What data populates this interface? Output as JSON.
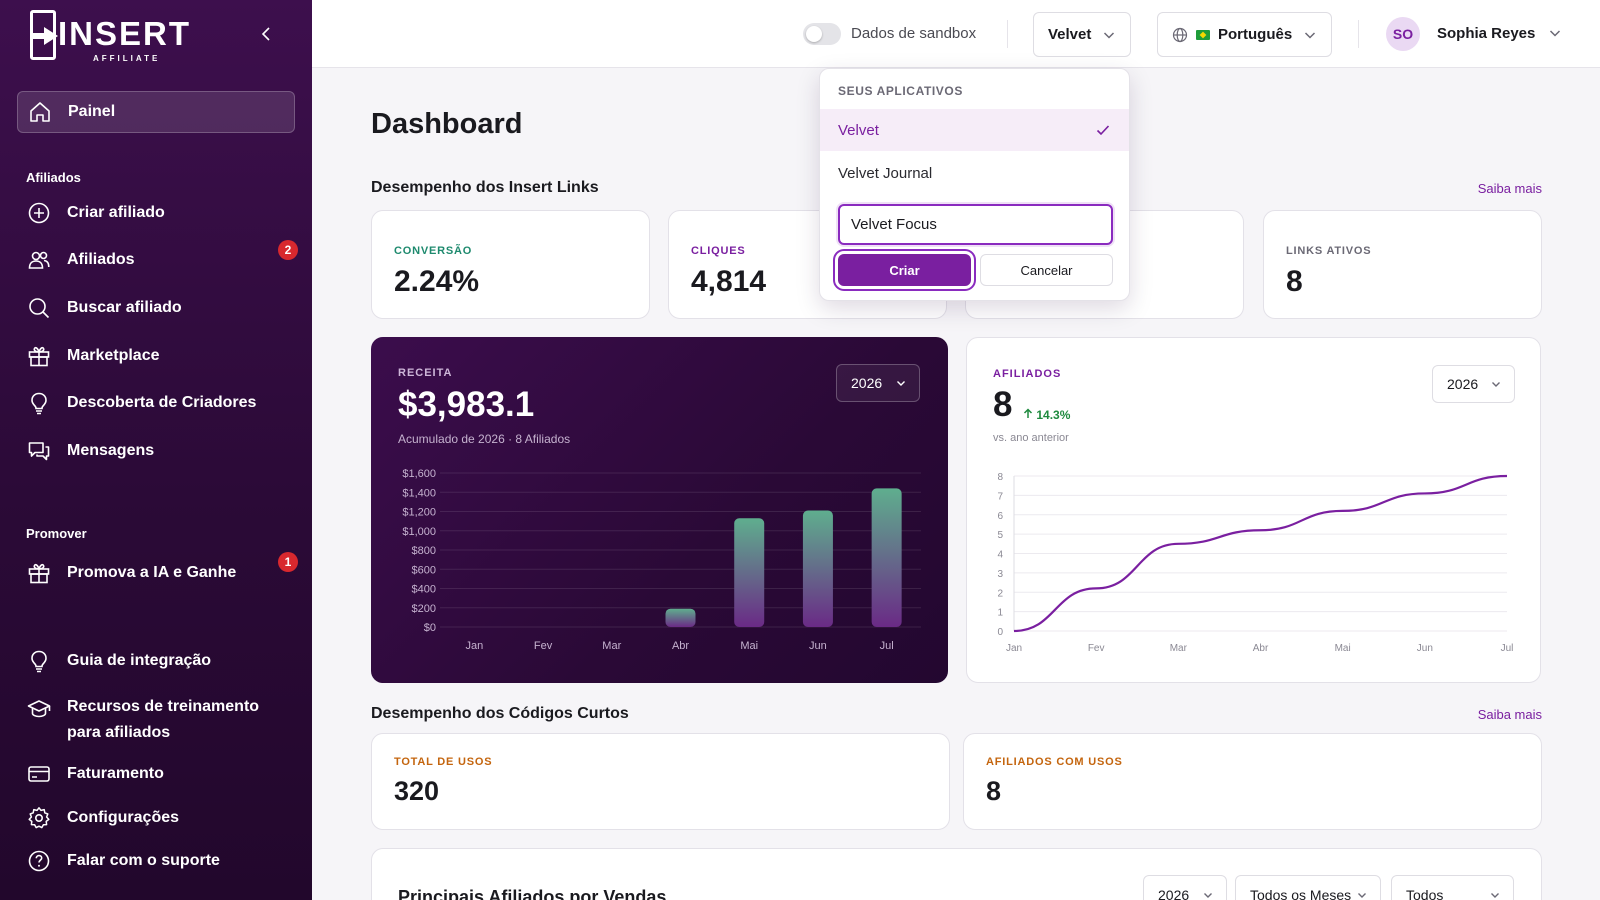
{
  "sidebar": {
    "logo_word": "INSERT",
    "logo_sub": "AFFILIATE",
    "active_item": "Painel",
    "section_afiliados": "Afiliados",
    "items_afiliados": [
      "Criar afiliado",
      "Afiliados",
      "Buscar afiliado",
      "Marketplace",
      "Descoberta de Criadores",
      "Mensagens"
    ],
    "afiliados_badge": "2",
    "section_promover": "Promover",
    "promover_item": "Promova a IA e Ganhe",
    "promover_badge": "1",
    "bottom_items": [
      "Guia de integração",
      "Recursos de treinamento para afiliados",
      "Faturamento",
      "Configurações",
      "Falar com o suporte"
    ]
  },
  "header": {
    "sandbox_label": "Dados de sandbox",
    "sandbox_on": false,
    "app_select": "Velvet",
    "language": "Português",
    "avatar_initials": "SO",
    "user_name": "Sophia Reyes"
  },
  "app_dropdown": {
    "title": "SEUS APLICATIVOS",
    "apps": [
      "Velvet",
      "Velvet Journal"
    ],
    "selected": "Velvet",
    "new_app_value": "Velvet Focus",
    "create_label": "Criar",
    "cancel_label": "Cancelar"
  },
  "main": {
    "title": "Dashboard",
    "links_section": "Desempenho dos Insert Links",
    "saiba_mais": "Saiba mais",
    "kpis": [
      {
        "label": "CONVERSÃO",
        "value": "2.24%",
        "color": "#1e8a6e"
      },
      {
        "label": "CLIQUES",
        "value": "4,814",
        "color": "#7a1fa0"
      },
      {
        "label": "",
        "value": "",
        "color": "#1a1a1f"
      },
      {
        "label": "LINKS ATIVOS",
        "value": "8",
        "color": "#6b6975"
      }
    ],
    "codes_section": "Desempenho dos Códigos Curtos",
    "codes_kpis": [
      {
        "label": "TOTAL DE USOS",
        "value": "320",
        "color": "#c4650e"
      },
      {
        "label": "AFILIADOS COM USOS",
        "value": "8",
        "color": "#c4650e"
      }
    ],
    "top_affiliates_title": "Principais Afiliados por Vendas",
    "filters": [
      "2026",
      "Todos os Meses",
      "Todos"
    ]
  },
  "revenue": {
    "label": "RECEITA",
    "value": "$3,983.1",
    "sub": "Acumulado de 2026 · 8 Afiliados",
    "year": "2026"
  },
  "affiliates": {
    "label": "AFILIADOS",
    "value": "8",
    "change": "14.3%",
    "sub": "vs. ano anterior",
    "year": "2026"
  },
  "chart_data": [
    {
      "type": "bar",
      "categories": [
        "Jan",
        "Fev",
        "Mar",
        "Abr",
        "Mai",
        "Jun",
        "Jul"
      ],
      "values": [
        0,
        0,
        0,
        190,
        1130,
        1210,
        1440
      ],
      "yticks": [
        "$0",
        "$200",
        "$400",
        "$600",
        "$800",
        "$1,000",
        "$1,200",
        "$1,400",
        "$1,600"
      ],
      "ylim": [
        0,
        1600
      ],
      "grid": true
    },
    {
      "type": "line",
      "categories": [
        "Jan",
        "Fev",
        "Mar",
        "Abr",
        "Mai",
        "Jun",
        "Jul"
      ],
      "values": [
        0,
        2.2,
        4.5,
        5.2,
        6.2,
        7.1,
        8
      ],
      "yticks": [
        "0",
        "1",
        "2",
        "3",
        "4",
        "5",
        "6",
        "7",
        "8"
      ],
      "ylim": [
        0,
        8
      ],
      "grid": true,
      "color": "#7a1fa0"
    }
  ]
}
